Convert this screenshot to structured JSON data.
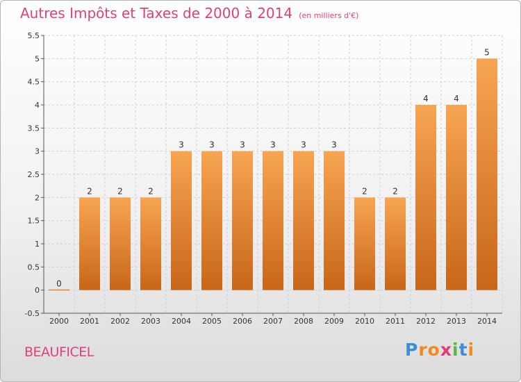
{
  "chart_data": {
    "type": "bar",
    "title": "Autres Impôts et Taxes de 2000 à 2014",
    "unit_note": "(en milliers d'€)",
    "categories": [
      "2000",
      "2001",
      "2002",
      "2003",
      "2004",
      "2005",
      "2006",
      "2007",
      "2008",
      "2009",
      "2010",
      "2011",
      "2012",
      "2013",
      "2014"
    ],
    "values": [
      0,
      2,
      2,
      2,
      3,
      3,
      3,
      3,
      3,
      3,
      2,
      2,
      4,
      4,
      5
    ],
    "data_labels": [
      "0",
      "2",
      "2",
      "2",
      "3",
      "3",
      "3",
      "3",
      "3",
      "3",
      "2",
      "2",
      "4",
      "4",
      "5"
    ],
    "ylim": [
      -0.5,
      5.5
    ],
    "yticks": [
      -0.5,
      0,
      0.5,
      1,
      1.5,
      2,
      2.5,
      3,
      3.5,
      4,
      4.5,
      5,
      5.5
    ],
    "ytick_labels": [
      "-0.5",
      "0",
      "0.5",
      "1",
      "1.5",
      "2",
      "2.5",
      "3",
      "3.5",
      "4",
      "4.5",
      "5",
      "5.5"
    ],
    "grid": true,
    "bar_color": "#f0902e",
    "bar_color_dark": "#c8661a",
    "grid_color": "#d0d0d0"
  },
  "location": "BEAUFICEL",
  "logo": {
    "letters": [
      "P",
      "r",
      "o",
      "x",
      "i",
      "t",
      "i"
    ],
    "colors": [
      "#3a8fd6",
      "#f08a1e",
      "#f08a1e",
      "#e03a7a",
      "#55b848",
      "#3a8fd6",
      "#f08a1e"
    ]
  }
}
